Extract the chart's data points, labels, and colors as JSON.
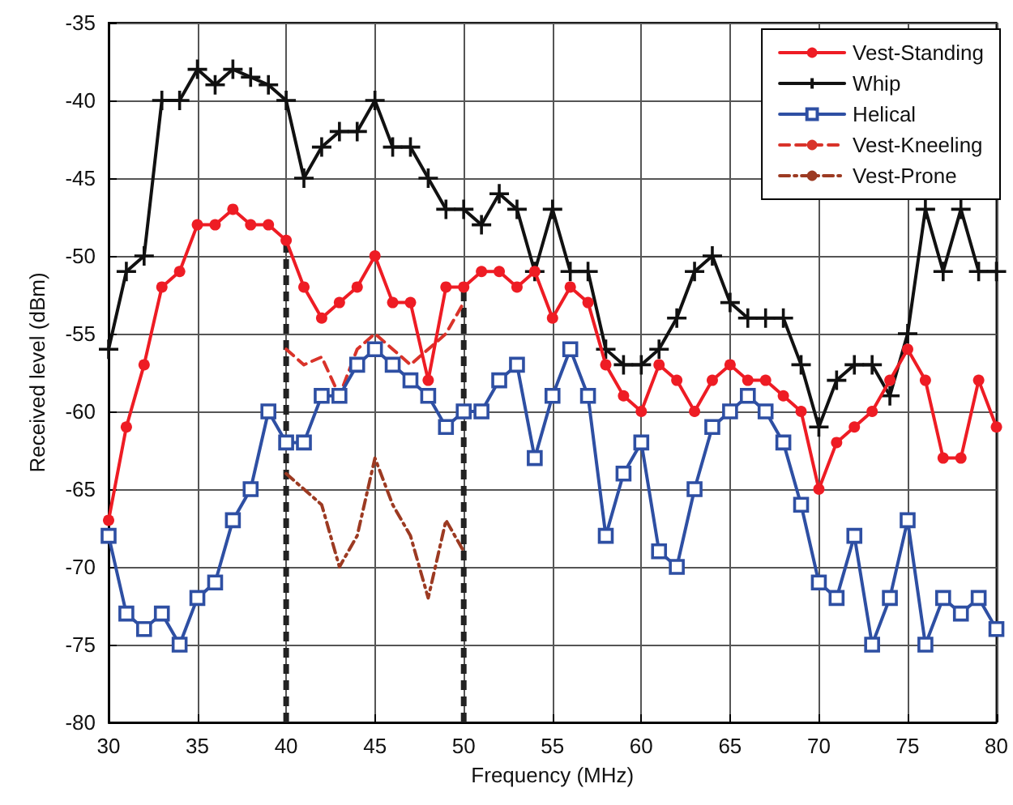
{
  "chart_data": {
    "type": "line",
    "xlabel": "Frequency (MHz)",
    "ylabel": "Received level (dBm)",
    "x": [
      30,
      31,
      32,
      33,
      34,
      35,
      36,
      37,
      38,
      39,
      40,
      41,
      42,
      43,
      44,
      45,
      46,
      47,
      48,
      49,
      50,
      51,
      52,
      53,
      54,
      55,
      56,
      57,
      58,
      59,
      60,
      61,
      62,
      63,
      64,
      65,
      66,
      67,
      68,
      69,
      70,
      71,
      72,
      73,
      74,
      75,
      76,
      77,
      78,
      79,
      80
    ],
    "series": [
      {
        "name": "Vest-Standing",
        "color": "#ee1c24",
        "marker": "circle",
        "line_style": "solid",
        "values": [
          -67,
          -61,
          -57,
          -52,
          -51,
          -48,
          -48,
          -47,
          -48,
          -48,
          -49,
          -52,
          -54,
          -53,
          -52,
          -50,
          -53,
          -53,
          -58,
          -52,
          -52,
          -51,
          -51,
          -52,
          -51,
          -54,
          -52,
          -53,
          -57,
          -59,
          -60,
          -57,
          -58,
          -60,
          -58,
          -57,
          -58,
          -58,
          -59,
          -60,
          -65,
          -62,
          -61,
          -60,
          -58,
          -56,
          -58,
          -63,
          -63,
          -58,
          -61
        ]
      },
      {
        "name": "Whip",
        "color": "#111111",
        "marker": "cross",
        "line_style": "solid",
        "values": [
          -56,
          -51,
          -50,
          -40,
          -40,
          -38,
          -39,
          -38,
          -38.5,
          -39,
          -40,
          -45,
          -43,
          -42,
          -42,
          -40,
          -43,
          -43,
          -45,
          -47,
          -47,
          -48,
          -46,
          -47,
          -51,
          -47,
          -51,
          -51,
          -56,
          -57,
          -57,
          -56,
          -54,
          -51,
          -50,
          -53,
          -54,
          -54,
          -54,
          -57,
          -61,
          -58,
          -57,
          -57,
          -59,
          -55,
          -47,
          -51,
          -47,
          -51,
          -51
        ]
      },
      {
        "name": "Helical",
        "color": "#2e4fa3",
        "marker": "square",
        "line_style": "solid",
        "values": [
          -68,
          -73,
          -74,
          -73,
          -75,
          -72,
          -71,
          -67,
          -65,
          -60,
          -62,
          -62,
          -59,
          -59,
          -57,
          -56,
          -57,
          -58,
          -59,
          -61,
          -60,
          -60,
          -58,
          -57,
          -63,
          -59,
          -56,
          -59,
          -68,
          -64,
          -62,
          -69,
          -70,
          -65,
          -61,
          -60,
          -59,
          -60,
          -62,
          -66,
          -71,
          -72,
          -68,
          -75,
          -72,
          -67,
          -75,
          -72,
          -73,
          -72,
          -74
        ]
      },
      {
        "name": "Vest-Kneeling",
        "color": "#d9332a",
        "marker": "none",
        "line_style": "dashed",
        "x": [
          40,
          41,
          42,
          43,
          44,
          45,
          46,
          47,
          48,
          49,
          50
        ],
        "values": [
          -56,
          -57,
          -56.5,
          -59,
          -56,
          -55,
          -56,
          -57,
          -56,
          -55,
          -53
        ]
      },
      {
        "name": "Vest-Prone",
        "color": "#9c3a22",
        "marker": "none",
        "line_style": "dashdot",
        "x": [
          40,
          41,
          42,
          43,
          44,
          45,
          46,
          47,
          48,
          49,
          50
        ],
        "values": [
          -64,
          -65,
          -66,
          -70,
          -68,
          -63,
          -66,
          -68,
          -72,
          -67,
          -69
        ]
      }
    ],
    "ref_lines": [
      {
        "axis": "x",
        "value": 40,
        "color": "#222222",
        "line_style": "dashed"
      },
      {
        "axis": "x",
        "value": 50,
        "color": "#222222",
        "line_style": "dashed"
      }
    ],
    "xlim": [
      30,
      80
    ],
    "xticks": [
      30,
      35,
      40,
      45,
      50,
      55,
      60,
      65,
      70,
      75,
      80
    ],
    "ylim": [
      -80,
      -35
    ],
    "yticks": [
      -80,
      -75,
      -70,
      -65,
      -60,
      -55,
      -50,
      -45,
      -40,
      -35
    ],
    "grid": true,
    "legend": "top right"
  }
}
